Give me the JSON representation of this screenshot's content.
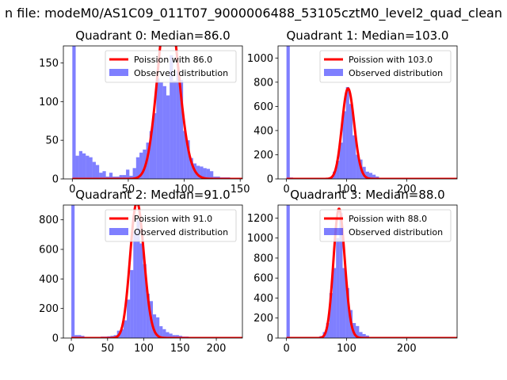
{
  "suptitle": "n file: modeM0/AS1C09_011T07_9000006488_53105cztM0_level2_quad_clean",
  "colors": {
    "hist": "#0000ff",
    "curve": "#ff0000",
    "axis": "#000000"
  },
  "chart_data": [
    {
      "type": "bar",
      "title": "Quadrant 0: Median=86.0",
      "median": 86.0,
      "xlim": [
        -8,
        152
      ],
      "ylim": [
        0,
        172
      ],
      "xticks": [
        0,
        50,
        100,
        150
      ],
      "yticks": [
        0,
        50,
        100,
        150
      ],
      "bin_width": 3,
      "bins_start": [
        -3,
        0,
        3,
        6,
        9,
        12,
        15,
        18,
        21,
        24,
        27,
        30,
        33,
        36,
        39,
        42,
        45,
        48,
        51,
        54,
        57,
        60,
        63,
        66,
        69,
        72,
        75,
        78,
        81,
        84,
        87,
        90,
        93,
        96,
        99,
        102,
        105,
        108,
        111,
        114,
        117,
        120,
        123,
        126,
        129,
        132,
        135,
        138,
        141
      ],
      "counts": [
        0,
        172,
        30,
        36,
        33,
        30,
        28,
        22,
        18,
        8,
        10,
        3,
        8,
        3,
        3,
        5,
        5,
        12,
        4,
        14,
        28,
        34,
        38,
        47,
        62,
        85,
        130,
        125,
        120,
        108,
        160,
        127,
        140,
        128,
        62,
        50,
        27,
        20,
        17,
        16,
        14,
        13,
        10,
        3,
        3,
        2,
        2,
        2,
        1
      ],
      "legend": {
        "curve": "Poission with 86.0",
        "hist": "Observed distribution",
        "loc": "upper right"
      }
    },
    {
      "type": "bar",
      "title": "Quadrant 1: Median=103.0",
      "median": 103.0,
      "xlim": [
        -14,
        284
      ],
      "ylim": [
        0,
        1100
      ],
      "xticks": [
        0,
        100,
        200
      ],
      "yticks": [
        0,
        200,
        400,
        600,
        800,
        1000
      ],
      "bin_width": 5.5,
      "bins_start": [
        0,
        5.5,
        66,
        71.5,
        77,
        82.5,
        88,
        93.5,
        99,
        104.5,
        110,
        115.5,
        121,
        126.5,
        132,
        137.5,
        143,
        148.5
      ],
      "counts": [
        1100,
        12,
        10,
        15,
        60,
        150,
        300,
        560,
        760,
        620,
        360,
        200,
        160,
        100,
        60,
        50,
        35,
        20
      ],
      "legend": {
        "curve": "Poission with 103.0",
        "hist": "Observed distribution",
        "loc": "upper right"
      }
    },
    {
      "type": "bar",
      "title": "Quadrant 2: Median=91.0",
      "median": 91.0,
      "xlim": [
        -11,
        236
      ],
      "ylim": [
        0,
        900
      ],
      "xticks": [
        0,
        50,
        100,
        150,
        200
      ],
      "yticks": [
        0,
        200,
        400,
        600,
        800
      ],
      "bin_width": 4.5,
      "bins_start": [
        0,
        4.5,
        9,
        13.5,
        18,
        22.5,
        27,
        31.5,
        36,
        40.5,
        45,
        49.5,
        54,
        58.5,
        63,
        67.5,
        72,
        76.5,
        81,
        85.5,
        90,
        94.5,
        99,
        103.5,
        108,
        112.5,
        117,
        121.5,
        126,
        130.5,
        135,
        139.5,
        144,
        148.5,
        153,
        157.5,
        162
      ],
      "counts": [
        900,
        20,
        20,
        15,
        5,
        5,
        8,
        8,
        8,
        10,
        10,
        12,
        15,
        20,
        50,
        60,
        120,
        260,
        460,
        720,
        800,
        640,
        500,
        300,
        250,
        160,
        140,
        80,
        60,
        40,
        30,
        20,
        20,
        15,
        10,
        10,
        5
      ],
      "legend": {
        "curve": "Poission with 91.0",
        "hist": "Observed distribution",
        "loc": "upper right"
      }
    },
    {
      "type": "bar",
      "title": "Quadrant 3: Median=88.0",
      "median": 88.0,
      "xlim": [
        -14,
        284
      ],
      "ylim": [
        0,
        1330
      ],
      "xticks": [
        0,
        100,
        200
      ],
      "yticks": [
        0,
        200,
        400,
        600,
        800,
        1000,
        1200
      ],
      "bin_width": 5.5,
      "bins_start": [
        0,
        5.5,
        44,
        49.5,
        55,
        60.5,
        66,
        71.5,
        77,
        82.5,
        88,
        93.5,
        99,
        104.5,
        110,
        115.5,
        121,
        126.5,
        132,
        137.5
      ],
      "counts": [
        1330,
        5,
        5,
        10,
        20,
        60,
        150,
        450,
        700,
        1000,
        1250,
        700,
        500,
        280,
        150,
        120,
        60,
        40,
        25,
        10
      ],
      "legend": {
        "curve": "Poission with 88.0",
        "hist": "Observed distribution",
        "loc": "upper right"
      }
    }
  ]
}
